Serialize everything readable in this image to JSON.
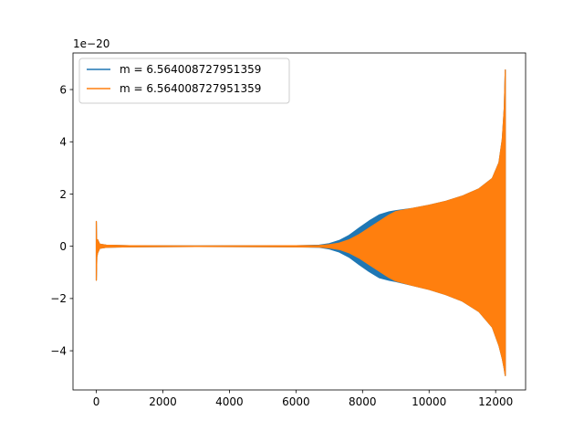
{
  "chart_data": {
    "type": "line",
    "title": "",
    "xlabel": "",
    "ylabel": "",
    "offset_text": "1e−20",
    "xlim": [
      -700,
      12900
    ],
    "ylim": [
      -5.5,
      7.4
    ],
    "xticks": [
      0,
      2000,
      4000,
      6000,
      8000,
      10000,
      12000
    ],
    "yticks": [
      -4,
      -2,
      0,
      2,
      4,
      6
    ],
    "grid": false,
    "legend_position": "upper-left",
    "series": [
      {
        "name": "m = 6.564008727951359",
        "color": "#1f77b4",
        "envelope_upper": [
          [
            0,
            0.95
          ],
          [
            15,
            -0.3
          ],
          [
            40,
            0.25
          ],
          [
            100,
            0.08
          ],
          [
            300,
            0.04
          ],
          [
            1000,
            0.02
          ],
          [
            3000,
            0.01
          ],
          [
            6000,
            0.02
          ],
          [
            6700,
            0.04
          ],
          [
            7000,
            0.1
          ],
          [
            7300,
            0.22
          ],
          [
            7600,
            0.42
          ],
          [
            7900,
            0.7
          ],
          [
            8200,
            0.97
          ],
          [
            8500,
            1.2
          ],
          [
            8800,
            1.32
          ],
          [
            9000,
            1.36
          ],
          [
            9500,
            1.45
          ],
          [
            10000,
            1.57
          ],
          [
            10500,
            1.72
          ],
          [
            11000,
            1.92
          ],
          [
            11500,
            2.2
          ],
          [
            11900,
            2.6
          ],
          [
            12100,
            3.2
          ],
          [
            12200,
            4.1
          ],
          [
            12260,
            5.3
          ],
          [
            12290,
            6.75
          ]
        ],
        "envelope_lower": [
          [
            0,
            -1.3
          ],
          [
            15,
            -0.4
          ],
          [
            40,
            -0.25
          ],
          [
            100,
            -0.08
          ],
          [
            300,
            -0.04
          ],
          [
            1000,
            -0.02
          ],
          [
            3000,
            -0.01
          ],
          [
            6000,
            -0.02
          ],
          [
            6700,
            -0.04
          ],
          [
            7000,
            -0.1
          ],
          [
            7300,
            -0.22
          ],
          [
            7600,
            -0.42
          ],
          [
            7900,
            -0.7
          ],
          [
            8200,
            -0.97
          ],
          [
            8500,
            -1.2
          ],
          [
            8800,
            -1.3
          ],
          [
            9000,
            -1.35
          ],
          [
            9500,
            -1.5
          ],
          [
            10000,
            -1.65
          ],
          [
            10500,
            -1.85
          ],
          [
            11000,
            -2.1
          ],
          [
            11500,
            -2.5
          ],
          [
            11900,
            -3.1
          ],
          [
            12100,
            -3.8
          ],
          [
            12200,
            -4.3
          ],
          [
            12260,
            -4.7
          ],
          [
            12290,
            -4.95
          ]
        ]
      },
      {
        "name": "m = 6.564008727951359",
        "color": "#ff7f0e",
        "envelope_upper": [
          [
            0,
            0.95
          ],
          [
            15,
            -0.3
          ],
          [
            40,
            0.25
          ],
          [
            100,
            0.08
          ],
          [
            300,
            0.04
          ],
          [
            1000,
            0.02
          ],
          [
            3000,
            0.01
          ],
          [
            6000,
            0.02
          ],
          [
            6700,
            0.03
          ],
          [
            7000,
            0.06
          ],
          [
            7300,
            0.12
          ],
          [
            7600,
            0.25
          ],
          [
            7900,
            0.45
          ],
          [
            8200,
            0.7
          ],
          [
            8500,
            0.95
          ],
          [
            8800,
            1.2
          ],
          [
            9000,
            1.33
          ],
          [
            9500,
            1.45
          ],
          [
            10000,
            1.57
          ],
          [
            10500,
            1.72
          ],
          [
            11000,
            1.92
          ],
          [
            11500,
            2.2
          ],
          [
            11900,
            2.6
          ],
          [
            12100,
            3.2
          ],
          [
            12200,
            4.1
          ],
          [
            12260,
            5.3
          ],
          [
            12290,
            6.75
          ]
        ],
        "envelope_lower": [
          [
            0,
            -1.3
          ],
          [
            15,
            -0.4
          ],
          [
            40,
            -0.25
          ],
          [
            100,
            -0.08
          ],
          [
            300,
            -0.04
          ],
          [
            1000,
            -0.02
          ],
          [
            3000,
            -0.01
          ],
          [
            6000,
            -0.02
          ],
          [
            6700,
            -0.03
          ],
          [
            7000,
            -0.06
          ],
          [
            7300,
            -0.12
          ],
          [
            7600,
            -0.25
          ],
          [
            7900,
            -0.45
          ],
          [
            8200,
            -0.7
          ],
          [
            8500,
            -0.95
          ],
          [
            8800,
            -1.2
          ],
          [
            9000,
            -1.33
          ],
          [
            9500,
            -1.5
          ],
          [
            10000,
            -1.65
          ],
          [
            10500,
            -1.85
          ],
          [
            11000,
            -2.1
          ],
          [
            11500,
            -2.5
          ],
          [
            11900,
            -3.1
          ],
          [
            12100,
            -3.8
          ],
          [
            12200,
            -4.3
          ],
          [
            12260,
            -4.7
          ],
          [
            12290,
            -4.95
          ]
        ]
      }
    ]
  }
}
